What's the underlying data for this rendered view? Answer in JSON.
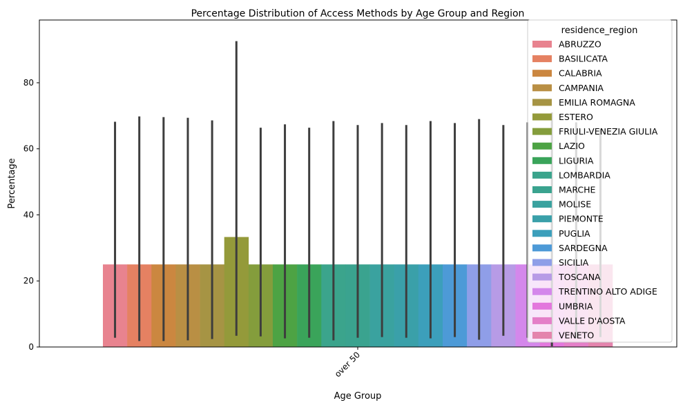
{
  "chart_data": {
    "type": "bar",
    "title": "Percentage Distribution of Access Methods by Age Group and Region",
    "xlabel": "Age Group",
    "ylabel": "Percentage",
    "categories": [
      "over 50"
    ],
    "ylim": [
      0,
      99
    ],
    "yticks": [
      0,
      20,
      40,
      60,
      80
    ],
    "legend": {
      "title": "residence_region",
      "placement": "top-right"
    },
    "series": [
      {
        "name": "ABRUZZO",
        "color": "#e8838f",
        "values": [
          25
        ],
        "err": [
          [
            2.8,
            68.2
          ]
        ]
      },
      {
        "name": "BASILICATA",
        "color": "#e58162",
        "values": [
          25
        ],
        "err": [
          [
            1.8,
            69.8
          ]
        ]
      },
      {
        "name": "CALABRIA",
        "color": "#cb8740",
        "values": [
          25
        ],
        "err": [
          [
            1.8,
            69.6
          ]
        ]
      },
      {
        "name": "CAMPANIA",
        "color": "#b98f44",
        "values": [
          25
        ],
        "err": [
          [
            2.0,
            69.4
          ]
        ]
      },
      {
        "name": "EMILIA ROMAGNA",
        "color": "#a69444",
        "values": [
          25
        ],
        "err": [
          [
            2.4,
            68.6
          ]
        ]
      },
      {
        "name": "ESTERO",
        "color": "#949a3a",
        "values": [
          33.3
        ],
        "err": [
          [
            3.4,
            92.6
          ]
        ]
      },
      {
        "name": "FRIULI-VENEZIA GIULIA",
        "color": "#849d3c",
        "values": [
          25
        ],
        "err": [
          [
            3.2,
            66.4
          ]
        ]
      },
      {
        "name": "LAZIO",
        "color": "#4da344",
        "values": [
          25
        ],
        "err": [
          [
            2.6,
            67.4
          ]
        ]
      },
      {
        "name": "LIGURIA",
        "color": "#3aa45a",
        "values": [
          25
        ],
        "err": [
          [
            2.8,
            66.4
          ]
        ]
      },
      {
        "name": "LOMBARDIA",
        "color": "#3ba48c",
        "values": [
          25
        ],
        "err": [
          [
            2.0,
            68.4
          ]
        ]
      },
      {
        "name": "MARCHE",
        "color": "#3aa38f",
        "values": [
          25
        ],
        "err": [
          [
            2.8,
            67.2
          ]
        ]
      },
      {
        "name": "MOLISE",
        "color": "#3aa29f",
        "values": [
          25
        ],
        "err": [
          [
            3.0,
            67.8
          ]
        ]
      },
      {
        "name": "PIEMONTE",
        "color": "#3aa0a9",
        "values": [
          25
        ],
        "err": [
          [
            2.8,
            67.2
          ]
        ]
      },
      {
        "name": "PUGLIA",
        "color": "#3c9fbb",
        "values": [
          25
        ],
        "err": [
          [
            2.6,
            68.4
          ]
        ]
      },
      {
        "name": "SARDEGNA",
        "color": "#4d9ad7",
        "values": [
          25
        ],
        "err": [
          [
            3.0,
            67.8
          ]
        ]
      },
      {
        "name": "SICILIA",
        "color": "#8f9ee8",
        "values": [
          25
        ],
        "err": [
          [
            2.2,
            69.0
          ]
        ]
      },
      {
        "name": "TOSCANA",
        "color": "#b79be6",
        "values": [
          25
        ],
        "err": [
          [
            3.4,
            67.2
          ]
        ]
      },
      {
        "name": "TRENTINO ALTO ADIGE",
        "color": "#d487eb",
        "values": [
          25
        ],
        "err": [
          [
            2.8,
            68.0
          ]
        ]
      },
      {
        "name": "UMBRIA",
        "color": "#e377dd",
        "values": [
          25
        ],
        "err": [
          [
            0.2,
            71.0
          ]
        ]
      },
      {
        "name": "VALLE D'AOSTA",
        "color": "#e47fc8",
        "values": [
          25
        ],
        "err": [
          [
            2.8,
            68.0
          ]
        ]
      },
      {
        "name": "VENETO",
        "color": "#e484ad",
        "values": [
          25
        ],
        "err": [
          [
            3.0,
            66.0
          ]
        ]
      }
    ]
  }
}
